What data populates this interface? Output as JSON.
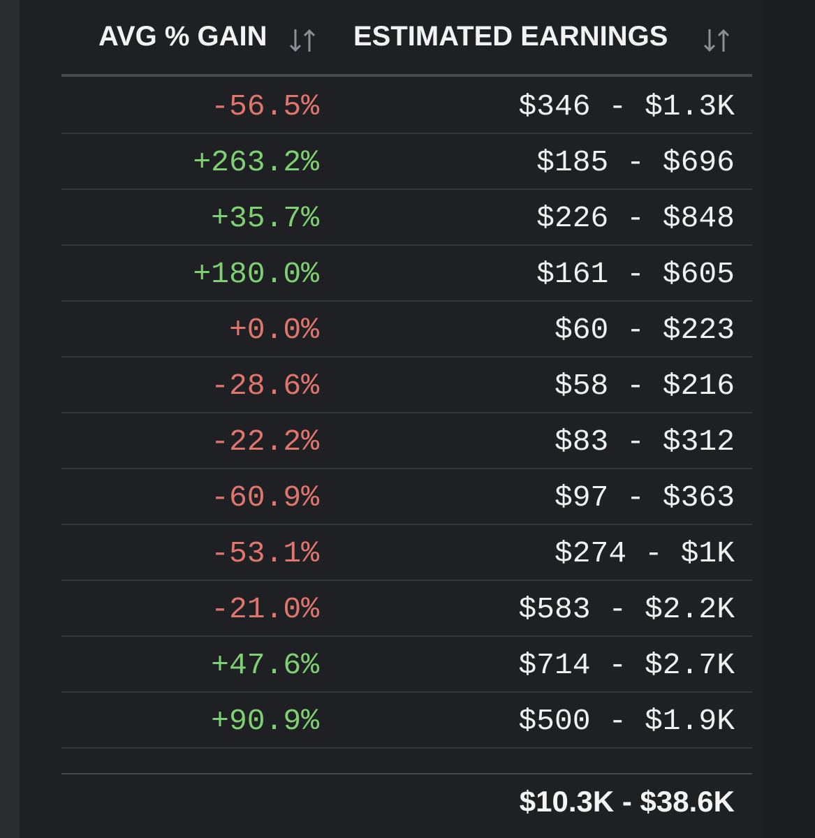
{
  "table": {
    "columns": [
      "AVG % GAIN",
      "ESTIMATED EARNINGS"
    ],
    "rows": [
      [
        "-56.5%",
        "$346 - $1.3K"
      ],
      [
        "+263.2%",
        "$185 - $696"
      ],
      [
        "+35.7%",
        "$226 - $848"
      ],
      [
        "+180.0%",
        "$161 - $605"
      ],
      [
        "+0.0%",
        "$60 - $223"
      ],
      [
        "-28.6%",
        "$58 - $216"
      ],
      [
        "-22.2%",
        "$83 - $312"
      ],
      [
        "-60.9%",
        "$97 - $363"
      ],
      [
        "-53.1%",
        "$274 - $1K"
      ],
      [
        "-21.0%",
        "$583 - $2.2K"
      ],
      [
        "+47.6%",
        "$714 - $2.7K"
      ],
      [
        "+90.9%",
        "$500 - $1.9K"
      ]
    ],
    "total": "$10.3K - $38.6K"
  }
}
